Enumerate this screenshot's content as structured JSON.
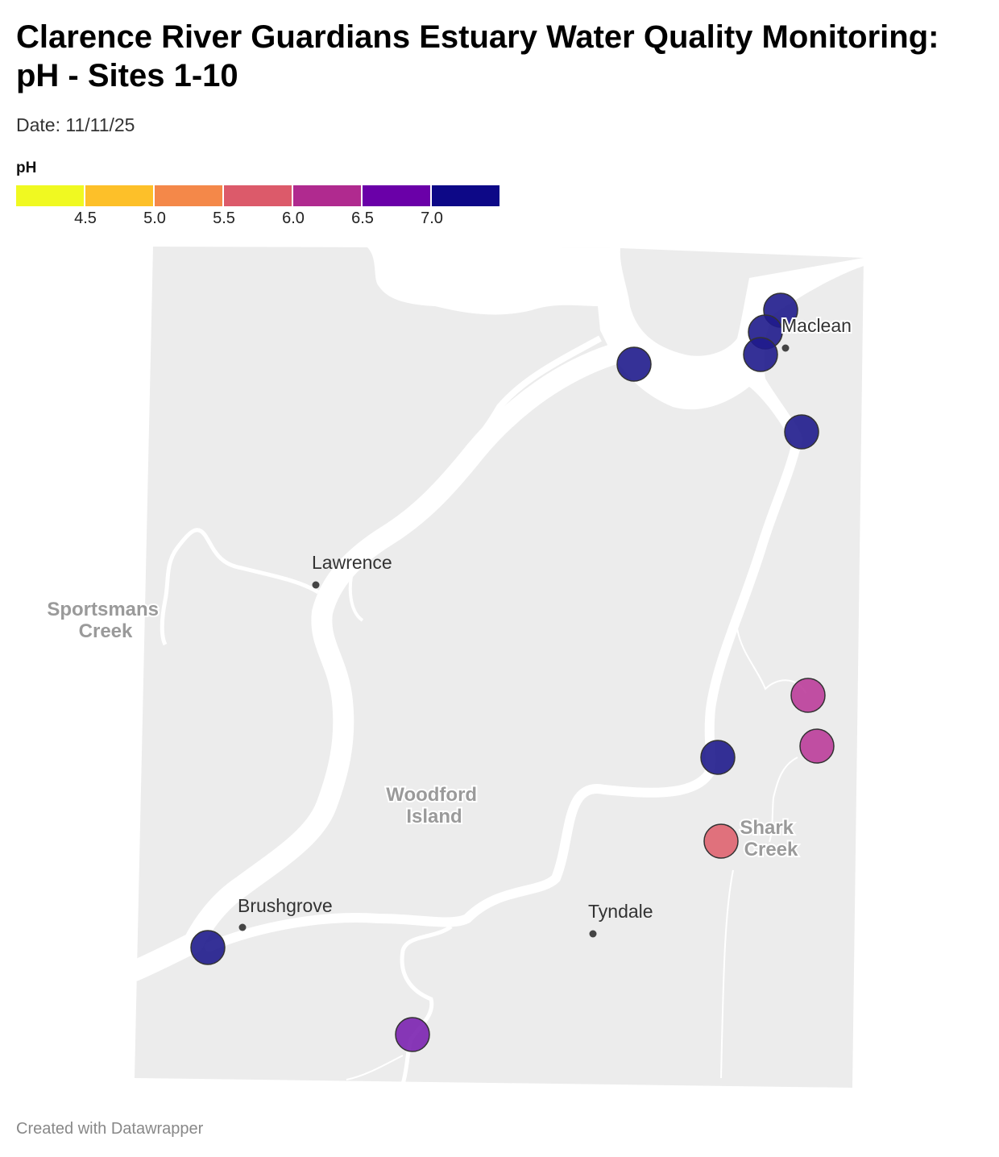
{
  "title_lines": [
    "Clarence River Guardians Estuary Water Quality Monitoring:",
    "pH - Sites 1-10"
  ],
  "subtitle": "Date: 11/11/25",
  "legend": {
    "title": "pH",
    "colors": [
      "#f0f921",
      "#fdc029",
      "#f48849",
      "#dc5a6a",
      "#b02a8f",
      "#6a00a8",
      "#0d0887"
    ],
    "ticks": [
      "4.5",
      "5.0",
      "5.5",
      "6.0",
      "6.5",
      "7.0"
    ]
  },
  "places": {
    "maclean": "Maclean",
    "lawrence": "Lawrence",
    "brushgrove": "Brushgrove",
    "tyndale": "Tyndale"
  },
  "water_features": {
    "sportsmans_creek": [
      "Sportsmans",
      "Creek"
    ],
    "woodford_island": [
      "Woodford",
      "Island"
    ],
    "shark_creek": [
      "Shark",
      "Creek"
    ]
  },
  "sites_color_encoding": {
    "deep_blue": "#1f1b8c",
    "purple": "#7b22b0",
    "magenta": "#bb3d9a",
    "red_pink": "#df6470"
  },
  "footer": "Created with Datawrapper"
}
